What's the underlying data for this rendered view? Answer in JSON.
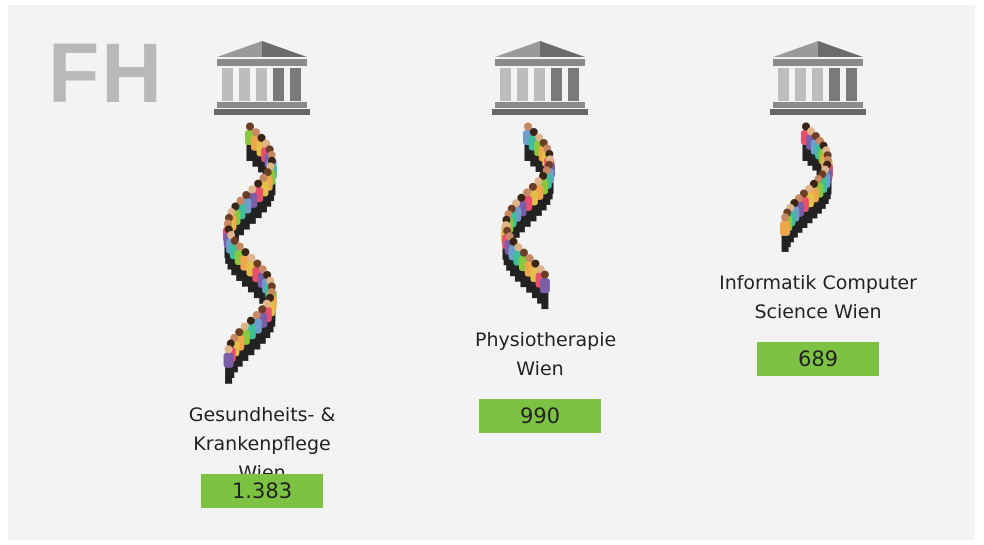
{
  "chart_data": {
    "type": "pictograph",
    "title": "FH",
    "categories": [
      "Gesundheits- & Krankenpflege Wien",
      "Physiotherapie Wien",
      "Informatik Computer Science Wien"
    ],
    "values": [
      1383,
      990,
      689
    ],
    "value_labels": [
      "1.383",
      "990",
      "689"
    ],
    "color": "#7dc242"
  }
}
